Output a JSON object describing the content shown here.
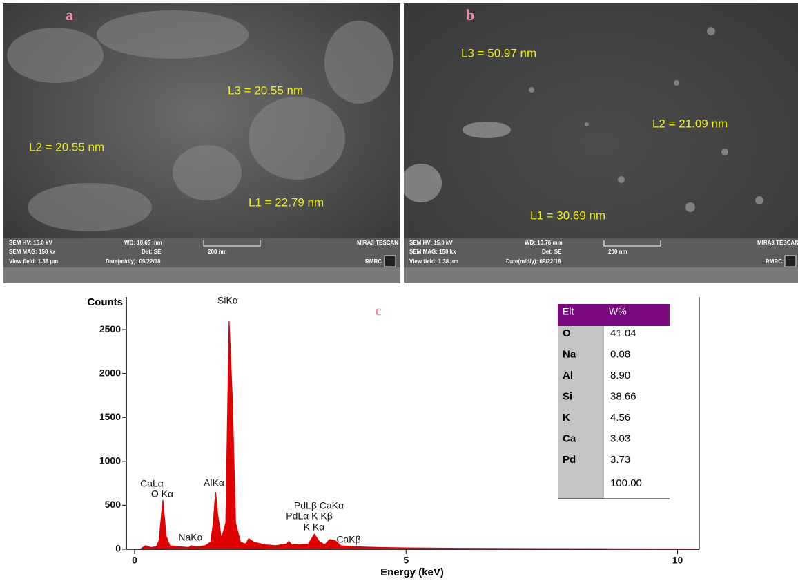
{
  "sem_panels": [
    {
      "label": "a",
      "measurements": [
        "L3 = 20.55 nm",
        "L2 = 20.55 nm",
        "L1 = 22.79 nm"
      ],
      "info": {
        "hv": "SEM HV: 15.0 kV",
        "wd": "WD: 10.65 mm",
        "brand": "MIRA3 TESCAN",
        "mag": "SEM MAG: 150 kx",
        "det": "Det: SE",
        "scale": "200 nm",
        "view": "View field: 1.38 µm",
        "date": "Date(m/d/y): 09/22/18",
        "lab": "RMRC"
      }
    },
    {
      "label": "b",
      "measurements": [
        "L3 = 50.97 nm",
        "L2 = 21.09 nm",
        "L1 = 30.69 nm"
      ],
      "info": {
        "hv": "SEM HV: 15.0 kV",
        "wd": "WD: 10.76 mm",
        "brand": "MIRA3 TESCAN",
        "mag": "SEM MAG: 150 kx",
        "det": "Det: SE",
        "scale": "200 nm",
        "view": "View field: 1.38 µm",
        "date": "Date(m/d/y): 09/22/18",
        "lab": "RMRC"
      }
    }
  ],
  "chart_data": {
    "type": "area",
    "panel_label": "c",
    "ylabel": "Counts",
    "xlabel": "Energy (keV)",
    "color": "#e00000",
    "x": [
      0,
      0.1,
      0.2,
      0.3,
      0.4,
      0.45,
      0.52,
      0.58,
      0.65,
      0.8,
      1.0,
      1.04,
      1.1,
      1.2,
      1.3,
      1.4,
      1.45,
      1.49,
      1.53,
      1.6,
      1.68,
      1.74,
      1.8,
      1.86,
      1.95,
      2.05,
      2.1,
      2.2,
      2.4,
      2.6,
      2.8,
      2.84,
      2.9,
      3.0,
      3.2,
      3.31,
      3.4,
      3.5,
      3.59,
      3.69,
      3.8,
      4.0,
      4.5,
      5.0,
      6.0,
      7.0,
      8.0,
      9.0,
      10.0,
      10.4
    ],
    "values": [
      0,
      0,
      40,
      20,
      30,
      100,
      560,
      150,
      40,
      30,
      20,
      40,
      30,
      30,
      40,
      80,
      300,
      650,
      400,
      120,
      300,
      2600,
      1700,
      300,
      80,
      60,
      120,
      80,
      50,
      40,
      60,
      90,
      50,
      50,
      60,
      170,
      90,
      50,
      110,
      100,
      40,
      30,
      20,
      15,
      10,
      8,
      6,
      5,
      4,
      3
    ],
    "xlim": [
      0,
      10.4
    ],
    "xticks": [
      0,
      5,
      10
    ],
    "ylim": [
      0,
      2870
    ],
    "yticks": [
      0,
      500,
      1000,
      1500,
      2000,
      2500
    ],
    "annotations": [
      "SiKα",
      "CaLα",
      "O Kα",
      "AlKα",
      "NaKα",
      "PdLβ CaKα",
      "PdLα K Kβ",
      "K Kα",
      "CaKβ"
    ]
  },
  "table": {
    "header": [
      "Elt",
      "W%"
    ],
    "rows": [
      [
        "O",
        "41.04"
      ],
      [
        "Na",
        "0.08"
      ],
      [
        "Al",
        "8.90"
      ],
      [
        "Si",
        "38.66"
      ],
      [
        "K",
        "4.56"
      ],
      [
        "Ca",
        "3.03"
      ],
      [
        "Pd",
        "3.73"
      ]
    ],
    "total": "100.00"
  }
}
